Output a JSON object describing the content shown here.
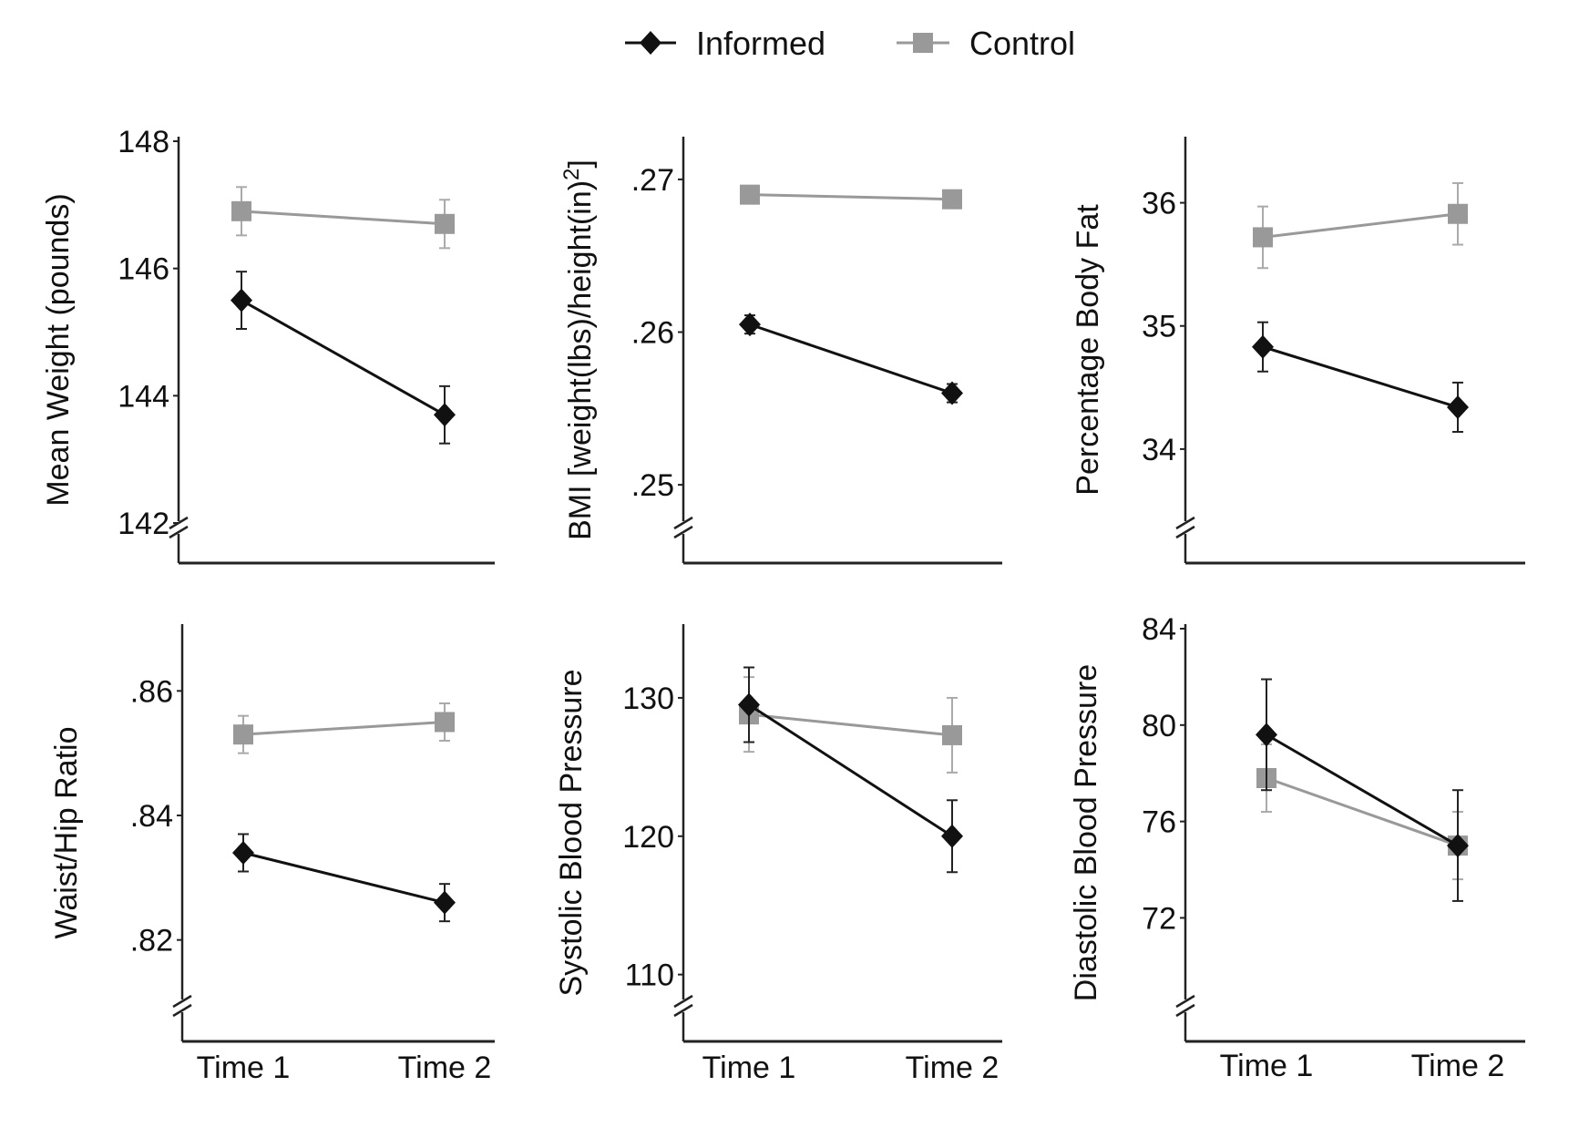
{
  "legend": [
    {
      "name": "Informed",
      "color": "#111111",
      "marker": "diamond"
    },
    {
      "name": "Control",
      "color": "#999999",
      "marker": "square"
    }
  ],
  "chart_data": [
    {
      "type": "line",
      "ylabel": "Mean Weight (pounds)",
      "categories": [
        "Time 1",
        "Time 2"
      ],
      "ylim": [
        142,
        148
      ],
      "yticks": [
        "142",
        "144",
        "146",
        "148"
      ],
      "ytick_values": [
        142,
        144,
        146,
        148
      ],
      "axis_break": true,
      "series": [
        {
          "name": "Informed",
          "values": [
            145.5,
            143.7
          ],
          "errors": [
            0.45,
            0.45
          ]
        },
        {
          "name": "Control",
          "values": [
            146.9,
            146.7
          ],
          "errors": [
            0.38,
            0.38
          ]
        }
      ]
    },
    {
      "type": "line",
      "ylabel": "BMI [weight(lbs)/height(in)",
      "ylabel_sup": "2",
      "ylabel_end": "]",
      "categories": [
        "Time 1",
        "Time 2"
      ],
      "ylim": [
        0.2475,
        0.2725
      ],
      "yticks": [
        ".25",
        ".26",
        ".27"
      ],
      "ytick_values": [
        0.25,
        0.26,
        0.27
      ],
      "axis_break": true,
      "series": [
        {
          "name": "Informed",
          "values": [
            0.2605,
            0.256
          ],
          "errors": [
            0.0006,
            0.0006
          ]
        },
        {
          "name": "Control",
          "values": [
            0.269,
            0.2687
          ],
          "errors": [
            0.0004,
            0.0004
          ]
        }
      ]
    },
    {
      "type": "line",
      "ylabel": "Percentage Body Fat",
      "categories": [
        "Time 1",
        "Time 2"
      ],
      "ylim": [
        33.4,
        36.5
      ],
      "yticks": [
        "34",
        "35",
        "36"
      ],
      "ytick_values": [
        34,
        35,
        36
      ],
      "axis_break": true,
      "series": [
        {
          "name": "Informed",
          "values": [
            34.83,
            34.34
          ],
          "errors": [
            0.2,
            0.2
          ]
        },
        {
          "name": "Control",
          "values": [
            35.72,
            35.91
          ],
          "errors": [
            0.25,
            0.25
          ]
        }
      ]
    },
    {
      "type": "line",
      "ylabel": "Waist/Hip Ratio",
      "categories": [
        "Time 1",
        "Time 2"
      ],
      "ylim": [
        0.81,
        0.87
      ],
      "yticks": [
        ".82",
        ".84",
        ".86"
      ],
      "ytick_values": [
        0.82,
        0.84,
        0.86
      ],
      "axis_break": true,
      "series": [
        {
          "name": "Informed",
          "values": [
            0.834,
            0.826
          ],
          "errors": [
            0.003,
            0.003
          ]
        },
        {
          "name": "Control",
          "values": [
            0.853,
            0.855
          ],
          "errors": [
            0.003,
            0.003
          ]
        }
      ]
    },
    {
      "type": "line",
      "ylabel": "Systolic Blood Pressure",
      "categories": [
        "Time 1",
        "Time 2"
      ],
      "ylim": [
        108,
        135
      ],
      "yticks": [
        "110",
        "120",
        "130"
      ],
      "ytick_values": [
        110,
        120,
        130
      ],
      "axis_break": true,
      "series": [
        {
          "name": "Informed",
          "values": [
            129.5,
            120.0
          ],
          "errors": [
            2.7,
            2.6
          ]
        },
        {
          "name": "Control",
          "values": [
            128.8,
            127.3
          ],
          "errors": [
            2.7,
            2.7
          ]
        }
      ]
    },
    {
      "type": "line",
      "ylabel": "Diastolic Blood Pressure",
      "categories": [
        "Time 1",
        "Time 2"
      ],
      "ylim": [
        68.5,
        84
      ],
      "yticks": [
        "72",
        "76",
        "80",
        "84"
      ],
      "ytick_values": [
        72,
        76,
        80,
        84
      ],
      "axis_break": true,
      "series": [
        {
          "name": "Informed",
          "values": [
            79.6,
            75.0
          ],
          "errors": [
            2.3,
            2.3
          ]
        },
        {
          "name": "Control",
          "values": [
            77.8,
            75.0
          ],
          "errors": [
            1.4,
            1.4
          ]
        }
      ]
    }
  ]
}
